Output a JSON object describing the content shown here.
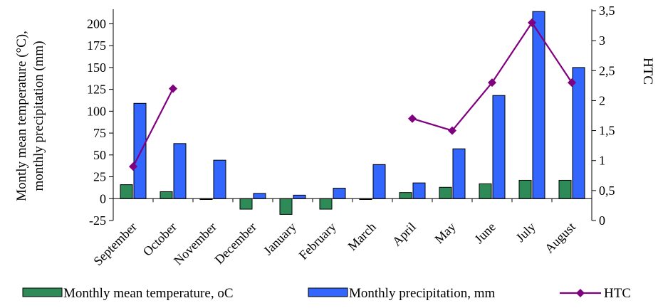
{
  "chart_data": {
    "type": "bar",
    "categories": [
      "September",
      "October",
      "November",
      "December",
      "January",
      "February",
      "March",
      "April",
      "May",
      "June",
      "July",
      "August"
    ],
    "series": [
      {
        "name": "Monthly mean temperature, oC",
        "type": "bar",
        "axis": "left",
        "color": "#2e8b57",
        "values": [
          16,
          8,
          -1,
          -12,
          -18,
          -12,
          -1,
          7,
          13,
          17,
          21,
          21
        ]
      },
      {
        "name": "Monthly precipitation, mm",
        "type": "bar",
        "axis": "left",
        "color": "#3366ff",
        "values": [
          109,
          63,
          44,
          6,
          4,
          12,
          39,
          18,
          57,
          118,
          214,
          150
        ]
      },
      {
        "name": "HTC",
        "type": "line",
        "axis": "right",
        "color": "#800080",
        "segments": [
          [
            {
              "x": "September",
              "y": 0.9
            },
            {
              "x": "October",
              "y": 2.2
            }
          ],
          [
            {
              "x": "April",
              "y": 1.7
            },
            {
              "x": "May",
              "y": 1.5
            },
            {
              "x": "June",
              "y": 2.3
            },
            {
              "x": "July",
              "y": 3.3
            },
            {
              "x": "August",
              "y": 2.3
            }
          ]
        ]
      }
    ],
    "ylabel_lines": [
      "Montly mean temperature (°C),",
      "monthly precipitation (mm)"
    ],
    "ylabel_right": "HTC",
    "ylim": [
      -25,
      215
    ],
    "yticks": [
      -25,
      0,
      25,
      50,
      75,
      100,
      125,
      150,
      175,
      200
    ],
    "ytick_labels": [
      "-25",
      "0",
      "25",
      "50",
      "75",
      "100",
      "125",
      "150",
      "175",
      "200"
    ],
    "ylim_right": [
      0,
      3.5
    ],
    "yticks_right": [
      0,
      0.5,
      1,
      1.5,
      2,
      2.5,
      3,
      3.5
    ],
    "ytick_labels_right": [
      "0",
      "0,5",
      "1",
      "1,5",
      "2",
      "2,5",
      "3",
      "3,5"
    ],
    "grid": false,
    "legend_position": "bottom"
  }
}
